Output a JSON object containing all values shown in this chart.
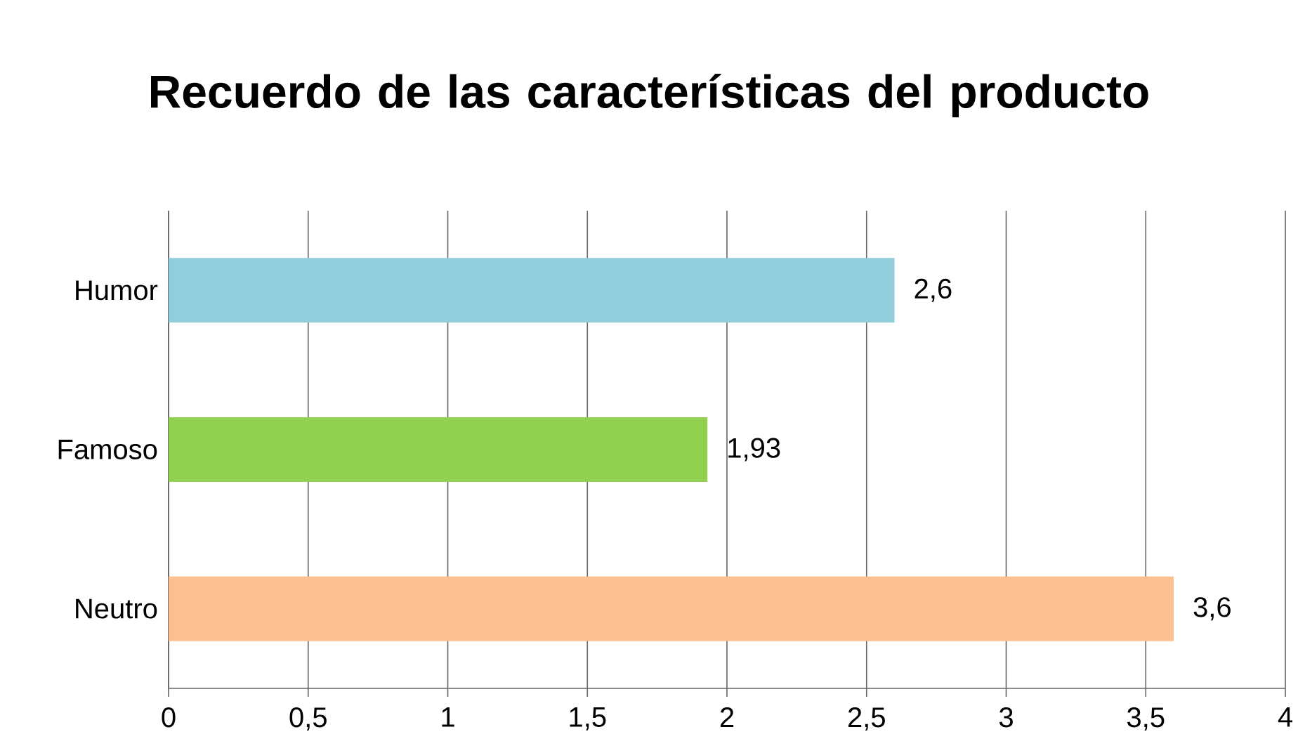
{
  "chart_data": {
    "type": "bar",
    "orientation": "horizontal",
    "title": "Recuerdo de las características del producto",
    "categories": [
      "Humor",
      "Famoso",
      "Neutro"
    ],
    "values": [
      2.6,
      1.93,
      3.6
    ],
    "colors": [
      "#92cddc",
      "#92d050",
      "#fac090"
    ],
    "value_labels": [
      "2,6",
      "1,93",
      "3,6"
    ],
    "xlim": [
      0,
      4
    ],
    "xticks": [
      0,
      {
        "value": 0.5,
        "label": "0,5"
      },
      1,
      {
        "value": 1.5,
        "label": "1,5"
      },
      2,
      {
        "value": 2.5,
        "label": "2,5"
      },
      3,
      {
        "value": 3.5,
        "label": "3,5"
      },
      4
    ],
    "grid": "x"
  }
}
